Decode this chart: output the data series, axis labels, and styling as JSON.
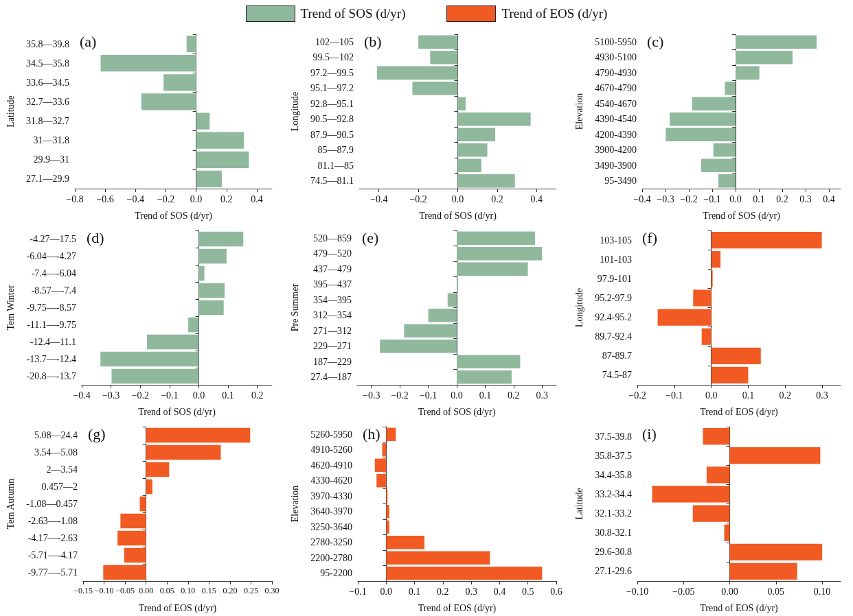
{
  "chart_data": [
    {
      "type": "bar",
      "orientation": "horizontal",
      "title": "(a)",
      "xlabel": "Trend of SOS (d/yr)",
      "ylabel": "Latitude",
      "legend": "top",
      "categories": [
        "35.8—39.8",
        "34.5—35.8",
        "33.6—34.5",
        "32.7—33.6",
        "31.8—32.7",
        "31—31.8",
        "29.9—31",
        "27.1—29.9"
      ],
      "series": [
        {
          "name": "Trend of SOS (d/yr)",
          "color": "#8fb89d",
          "values": [
            -0.063,
            -0.63,
            -0.215,
            -0.362,
            0.089,
            0.315,
            0.348,
            0.169
          ]
        }
      ],
      "xlim": [
        -0.8,
        0.5
      ],
      "xticks": [
        {
          "value": -0.8,
          "label": "−0.8"
        },
        {
          "value": -0.6,
          "label": "−0.6"
        },
        {
          "value": -0.4,
          "label": "−0.4"
        },
        {
          "value": -0.2,
          "label": "−0.2"
        },
        {
          "value": 0,
          "label": "0.0"
        },
        {
          "value": 0.2,
          "label": "0.2"
        },
        {
          "value": 0.4,
          "label": "0.4"
        }
      ]
    },
    {
      "type": "bar",
      "orientation": "horizontal",
      "title": "(b)",
      "xlabel": "Trend of SOS (d/yr)",
      "ylabel": "Longitude",
      "categories": [
        "102—105",
        "99.5—102",
        "97.2—99.5",
        "95.1—97.2",
        "92.8—95.1",
        "90.5—92.8",
        "87.9—90.5",
        "85—87.9",
        "81.1—85",
        "74.5—81.1"
      ],
      "series": [
        {
          "color": "#8fb89d",
          "values": [
            -0.2,
            -0.14,
            -0.41,
            -0.23,
            0.04,
            0.37,
            0.19,
            0.15,
            0.12,
            0.29
          ]
        }
      ],
      "xlim": [
        -0.5,
        0.5
      ],
      "xticks": [
        {
          "value": -0.4,
          "label": "−0.4"
        },
        {
          "value": -0.2,
          "label": "−0.2"
        },
        {
          "value": 0,
          "label": "0.0"
        },
        {
          "value": 0.2,
          "label": "0.2"
        },
        {
          "value": 0.4,
          "label": "0.4"
        }
      ]
    },
    {
      "type": "bar",
      "orientation": "horizontal",
      "title": "(c)",
      "xlabel": "Trend of SOS (d/yr)",
      "ylabel": "Elevation",
      "categories": [
        "5100-5950",
        "4930-5100",
        "4790-4930",
        "4670-4790",
        "4540-4670",
        "4390-4540",
        "4200-4390",
        "3900-4200",
        "3490-3900",
        "95-3490"
      ],
      "series": [
        {
          "color": "#8fb89d",
          "values": [
            0.347,
            0.244,
            0.102,
            -0.046,
            -0.186,
            -0.282,
            -0.299,
            -0.095,
            -0.147,
            -0.074
          ]
        }
      ],
      "xlim": [
        -0.4,
        0.45
      ],
      "xticks": [
        {
          "value": -0.4,
          "label": "−0.4"
        },
        {
          "value": -0.3,
          "label": "−0.3"
        },
        {
          "value": -0.2,
          "label": "−0.2"
        },
        {
          "value": -0.1,
          "label": "−0.1"
        },
        {
          "value": 0,
          "label": "0.0"
        },
        {
          "value": 0.1,
          "label": "0.1"
        },
        {
          "value": 0.2,
          "label": "0.2"
        },
        {
          "value": 0.3,
          "label": "0.3"
        },
        {
          "value": 0.4,
          "label": "0.4"
        }
      ]
    },
    {
      "type": "bar",
      "orientation": "horizontal",
      "title": "(d)",
      "xlabel": "Trend of SOS (d/yr)",
      "ylabel": "Tem Winter",
      "categories": [
        "-4.27—17.5",
        "-6.04—-4.27",
        "-7.4—-6.04",
        "-8.57—-7.4",
        "-9.75—-8.57",
        "-11.1—-9.75",
        "-12.4—11.1",
        "-13.7—-12.4",
        "-20.8—-13.7"
      ],
      "series": [
        {
          "color": "#8fb89d",
          "values": [
            0.152,
            0.095,
            0.019,
            0.088,
            0.085,
            -0.036,
            -0.177,
            -0.336,
            -0.298
          ]
        }
      ],
      "xlim": [
        -0.4,
        0.25
      ],
      "xticks": [
        {
          "value": -0.4,
          "label": "−0.4"
        },
        {
          "value": -0.3,
          "label": "−0.3"
        },
        {
          "value": -0.2,
          "label": "−0.2"
        },
        {
          "value": -0.1,
          "label": "−0.1"
        },
        {
          "value": 0,
          "label": "0.0"
        },
        {
          "value": 0.1,
          "label": "0.1"
        },
        {
          "value": 0.2,
          "label": "0.2"
        }
      ]
    },
    {
      "type": "bar",
      "orientation": "horizontal",
      "title": "(e)",
      "xlabel": "Trend of SOS (d/yr)",
      "ylabel": "Pre Summer",
      "categories": [
        "520—859",
        "479—520",
        "437—479",
        "395—437",
        "354—395",
        "312—354",
        "271—312",
        "229—271",
        "187—229",
        "27.4—187"
      ],
      "series": [
        {
          "color": "#8fb89d",
          "values": [
            0.275,
            0.3,
            0.25,
            0.003,
            -0.032,
            -0.1,
            -0.185,
            -0.27,
            0.223,
            0.193
          ]
        }
      ],
      "xlim": [
        -0.35,
        0.35
      ],
      "xticks": [
        {
          "value": -0.3,
          "label": "−0.3"
        },
        {
          "value": -0.2,
          "label": "−0.2"
        },
        {
          "value": -0.1,
          "label": "−0.1"
        },
        {
          "value": 0,
          "label": "0.0"
        },
        {
          "value": 0.1,
          "label": "0.1"
        },
        {
          "value": 0.2,
          "label": "0.2"
        },
        {
          "value": 0.3,
          "label": "0.3"
        }
      ]
    },
    {
      "type": "bar",
      "orientation": "horizontal",
      "title": "(f)",
      "xlabel": "Trend of EOS (d/yr)",
      "ylabel": "Longitude",
      "legend": "top",
      "categories": [
        "103-105",
        "101-103",
        "97.9-101",
        "95.2-97.9",
        "92.4-95.2",
        "89.7-92.4",
        "87-89.7",
        "74.5-87"
      ],
      "series": [
        {
          "name": "Trend of EOS (d/yr)",
          "color": "#f15a22",
          "values": [
            0.299,
            0.025,
            0.001,
            -0.049,
            -0.145,
            -0.026,
            0.134,
            0.1
          ]
        }
      ],
      "xlim": [
        -0.2,
        0.35
      ],
      "xticks": [
        {
          "value": -0.2,
          "label": "−0.2"
        },
        {
          "value": -0.1,
          "label": "−0.1"
        },
        {
          "value": 0,
          "label": "0.0"
        },
        {
          "value": 0.1,
          "label": "0.1"
        },
        {
          "value": 0.2,
          "label": "0.2"
        },
        {
          "value": 0.3,
          "label": "0.3"
        }
      ]
    },
    {
      "type": "bar",
      "orientation": "horizontal",
      "title": "(g)",
      "xlabel": "Trend of EOS (d/yr)",
      "ylabel": "Tem Autumn",
      "categories": [
        "5.08—24.4",
        "3.54—5.08",
        "2—3.54",
        "0.457—2",
        "-1.08—0.457",
        "-2.63—-1.08",
        "-4.17—-2.63",
        "-5.71—-4.17",
        "-9.77—-5.71"
      ],
      "series": [
        {
          "color": "#f15a22",
          "values": [
            0.248,
            0.178,
            0.055,
            0.015,
            -0.015,
            -0.061,
            -0.068,
            -0.052,
            -0.102
          ]
        }
      ],
      "xlim": [
        -0.15,
        0.3
      ],
      "xticks": [
        {
          "value": -0.15,
          "label": "−0.15"
        },
        {
          "value": -0.1,
          "label": "−0.10"
        },
        {
          "value": -0.05,
          "label": "−0.05"
        },
        {
          "value": 0,
          "label": "0.00"
        },
        {
          "value": 0.05,
          "label": "0.05"
        },
        {
          "value": 0.1,
          "label": "0.10"
        },
        {
          "value": 0.15,
          "label": "0.15"
        },
        {
          "value": 0.2,
          "label": "0.20"
        },
        {
          "value": 0.25,
          "label": "0.25"
        },
        {
          "value": 0.3,
          "label": "0.30"
        }
      ]
    },
    {
      "type": "bar",
      "orientation": "horizontal",
      "title": "(h)",
      "xlabel": "Trend of EOS (d/yr)",
      "ylabel": "Elevation",
      "categories": [
        "5260-5950",
        "4910-5260",
        "4620-4910",
        "4330-4620",
        "3970-4330",
        "3640-3970",
        "3250-3640",
        "2780-3250",
        "2200-2780",
        "95-2200"
      ],
      "series": [
        {
          "color": "#f15a22",
          "values": [
            0.034,
            -0.014,
            -0.04,
            -0.034,
            0.002,
            0.011,
            0.011,
            0.135,
            0.366,
            0.55
          ]
        }
      ],
      "xlim": [
        -0.1,
        0.6
      ],
      "xticks": [
        {
          "value": -0.1,
          "label": "−0.1"
        },
        {
          "value": 0,
          "label": "0.0"
        },
        {
          "value": 0.1,
          "label": "0.1"
        },
        {
          "value": 0.2,
          "label": "0.2"
        },
        {
          "value": 0.3,
          "label": "0.3"
        },
        {
          "value": 0.4,
          "label": "0.4"
        },
        {
          "value": 0.5,
          "label": "0.5"
        },
        {
          "value": 0.6,
          "label": "0.6"
        }
      ]
    },
    {
      "type": "bar",
      "orientation": "horizontal",
      "title": "(i)",
      "xlabel": "Trend of EOS (d/yr)",
      "ylabel": "Latitude",
      "categories": [
        "37.5-39.8",
        "35.8-37.5",
        "34.4-35.8",
        "33.2-34.4",
        "32.1-33.2",
        "30.8-32.1",
        "29.6-30.8",
        "27.1-29.6"
      ],
      "series": [
        {
          "color": "#f15a22",
          "values": [
            -0.029,
            0.098,
            -0.025,
            -0.084,
            -0.04,
            -0.006,
            0.1,
            0.073
          ]
        }
      ],
      "xlim": [
        -0.1,
        0.12
      ],
      "xticks": [
        {
          "value": -0.1,
          "label": "−0.10"
        },
        {
          "value": -0.05,
          "label": "−0.05"
        },
        {
          "value": 0,
          "label": "0.00"
        },
        {
          "value": 0.05,
          "label": "0.05"
        },
        {
          "value": 0.1,
          "label": "0.10"
        }
      ]
    }
  ]
}
